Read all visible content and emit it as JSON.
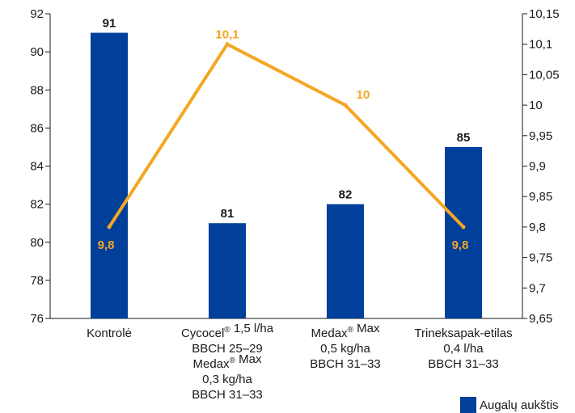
{
  "chart_data": {
    "type": "bar+line",
    "categories": [
      [
        "Kontrolė"
      ],
      [
        "Cycocel® 1,5 l/ha",
        "BBCH 25–29",
        "Medax® Max",
        "0,3 kg/ha",
        "BBCH 31–33"
      ],
      [
        "Medax® Max",
        "0,5 kg/ha",
        "BBCH 31–33"
      ],
      [
        "Trineksapak-etilas",
        "0,4 l/ha",
        "BBCH 31–33"
      ]
    ],
    "series": [
      {
        "name": "Augalų aukštis",
        "type": "bar",
        "axis": "left",
        "color": "#003f9a",
        "values": [
          91,
          81,
          82,
          85
        ],
        "labels": [
          "91",
          "81",
          "82",
          "85"
        ]
      },
      {
        "type": "line",
        "axis": "right",
        "color": "#f5a623",
        "values": [
          9.8,
          10.1,
          10.0,
          9.8
        ],
        "labels": [
          "9,8",
          "10,1",
          "10",
          "9,8"
        ]
      }
    ],
    "y_left": {
      "range": [
        76,
        92
      ],
      "ticks": [
        "76",
        "78",
        "80",
        "82",
        "84",
        "86",
        "88",
        "90",
        "92"
      ]
    },
    "y_right": {
      "range": [
        9.65,
        10.15
      ],
      "ticks": [
        "9,65",
        "9,7",
        "9,75",
        "9,8",
        "9,85",
        "9,9",
        "9,95",
        "10",
        "10,05",
        "10,1",
        "10,15"
      ]
    },
    "legend": {
      "position": "bottom-right",
      "text": "Augalų aukštis"
    },
    "grid": false
  }
}
